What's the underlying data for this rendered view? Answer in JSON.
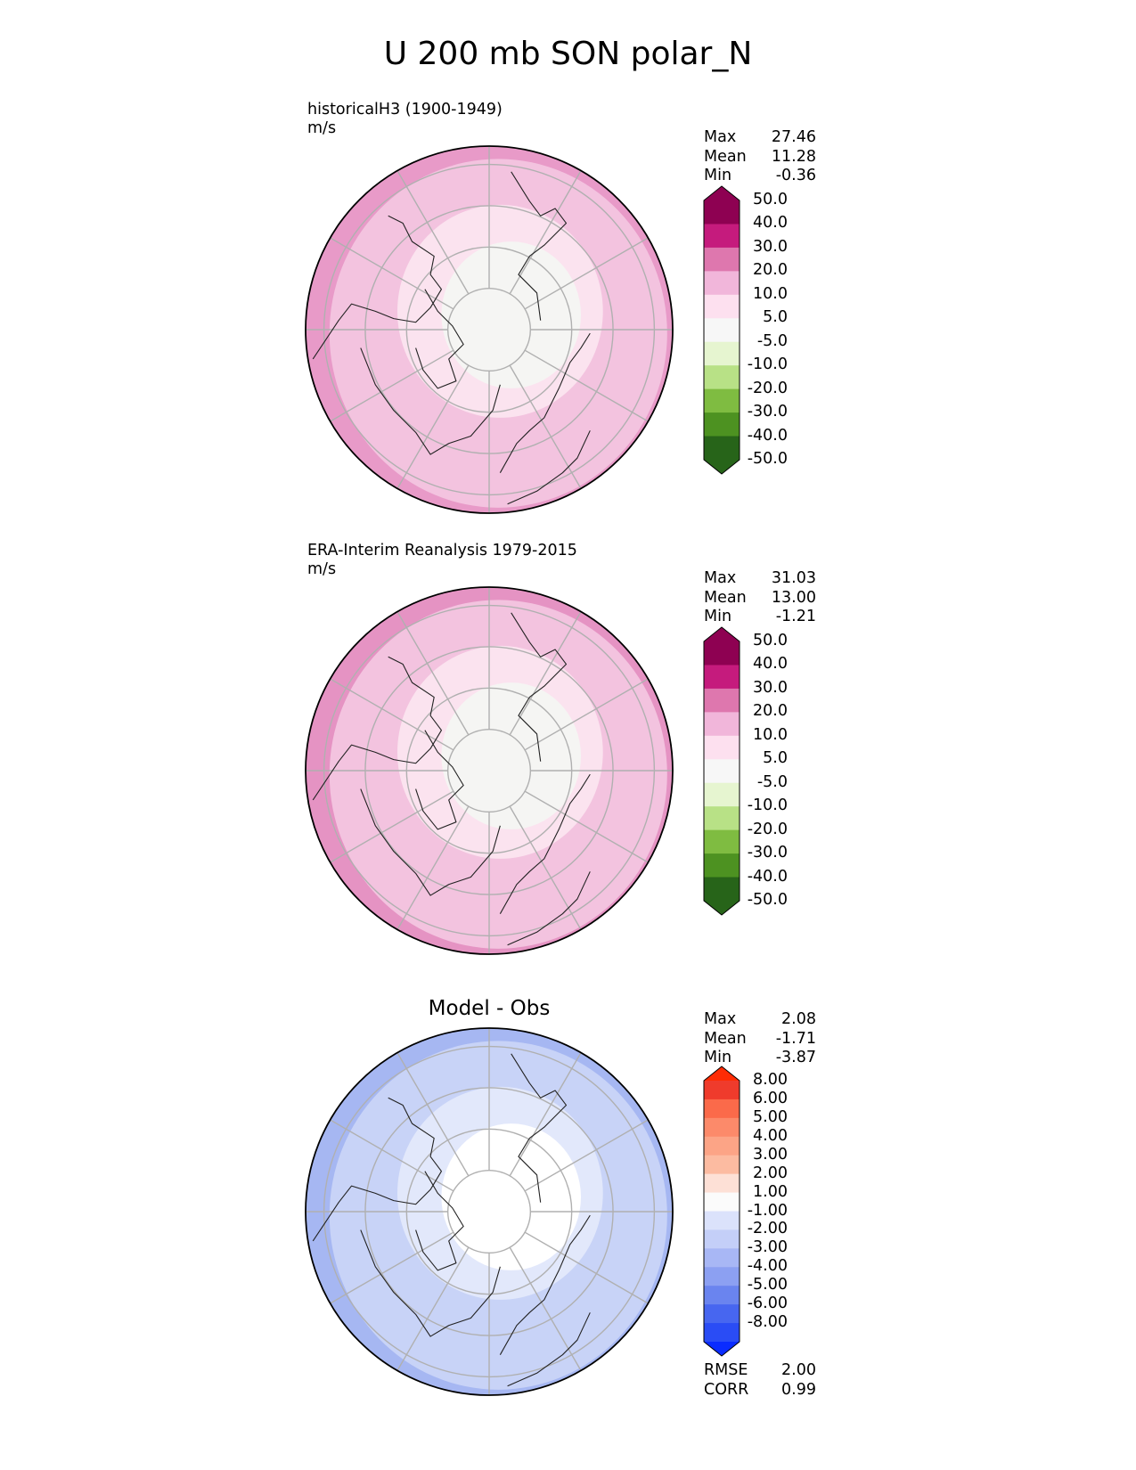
{
  "title": "U 200 mb SON polar_N",
  "panels": [
    {
      "id": "model",
      "label": "historicalH3 (1900-1949)",
      "units": "m/s",
      "title": "",
      "stats": [
        {
          "label": "Max",
          "value": "27.46"
        },
        {
          "label": "Mean",
          "value": "11.28"
        },
        {
          "label": "Min",
          "value": "-0.36"
        }
      ],
      "colorbar": {
        "ticks": [
          "50.0",
          "40.0",
          "30.0",
          "20.0",
          "10.0",
          "5.0",
          "-5.0",
          "-10.0",
          "-20.0",
          "-30.0",
          "-40.0",
          "-50.0"
        ],
        "colors": [
          "#8e0152",
          "#c51b7d",
          "#de77ae",
          "#f1b6da",
          "#fde0ef",
          "#f7f7f7",
          "#e6f5d0",
          "#b8e186",
          "#7fbc41",
          "#4d9221",
          "#276419"
        ],
        "extend_top": "#8e0152",
        "extend_bottom": "#276419"
      },
      "map_fill": {
        "outer": "#e89ac8",
        "mid": "#f3c3df",
        "inner": "#fbe3ef",
        "center": "#f5f5f3"
      }
    },
    {
      "id": "obs",
      "label": "ERA-Interim Reanalysis 1979-2015",
      "units": "m/s",
      "title": "",
      "stats": [
        {
          "label": "Max",
          "value": "31.03"
        },
        {
          "label": "Mean",
          "value": "13.00"
        },
        {
          "label": "Min",
          "value": "-1.21"
        }
      ],
      "colorbar": {
        "ticks": [
          "50.0",
          "40.0",
          "30.0",
          "20.0",
          "10.0",
          "5.0",
          "-5.0",
          "-10.0",
          "-20.0",
          "-30.0",
          "-40.0",
          "-50.0"
        ],
        "colors": [
          "#8e0152",
          "#c51b7d",
          "#de77ae",
          "#f1b6da",
          "#fde0ef",
          "#f7f7f7",
          "#e6f5d0",
          "#b8e186",
          "#7fbc41",
          "#4d9221",
          "#276419"
        ],
        "extend_top": "#8e0152",
        "extend_bottom": "#276419"
      },
      "map_fill": {
        "outer": "#e593c3",
        "mid": "#f3c3df",
        "inner": "#fbe3ef",
        "center": "#f5f5f3"
      }
    },
    {
      "id": "diff",
      "label": "",
      "units": "",
      "title": "Model - Obs",
      "stats": [
        {
          "label": "Max",
          "value": "2.08"
        },
        {
          "label": "Mean",
          "value": "-1.71"
        },
        {
          "label": "Min",
          "value": "-3.87"
        }
      ],
      "extra_stats": [
        {
          "label": "RMSE",
          "value": "2.00"
        },
        {
          "label": "CORR",
          "value": "0.99"
        }
      ],
      "colorbar": {
        "ticks": [
          "8.00",
          "6.00",
          "5.00",
          "4.00",
          "3.00",
          "2.00",
          "1.00",
          "-1.00",
          "-2.00",
          "-3.00",
          "-4.00",
          "-5.00",
          "-6.00",
          "-8.00"
        ],
        "colors": [
          "#ef3b2c",
          "#fb6a4a",
          "#fc8a6a",
          "#fca486",
          "#fcbba1",
          "#fde0d6",
          "#fbfbfb",
          "#dbe2fb",
          "#c4cff8",
          "#a8b7f5",
          "#8ca0f2",
          "#6a84ef",
          "#4766f0",
          "#2a4cf5"
        ],
        "extend_top": "#fe2c05",
        "extend_bottom": "#0a2cff"
      },
      "map_fill": {
        "outer": "#a6b7f2",
        "mid": "#c8d3f7",
        "inner": "#e2e8fb",
        "center": "#ffffff"
      }
    }
  ],
  "chart_data": [
    {
      "type": "heatmap",
      "projection": "north polar stereographic",
      "variable": "U 200 mb SON polar_N",
      "subtitle": "historicalH3 (1900-1949)",
      "units": "m/s",
      "stats": {
        "max": 27.46,
        "mean": 11.28,
        "min": -0.36
      },
      "levels": [
        -50,
        -40,
        -30,
        -20,
        -10,
        -5,
        5,
        10,
        20,
        30,
        40,
        50
      ]
    },
    {
      "type": "heatmap",
      "projection": "north polar stereographic",
      "variable": "U 200 mb SON polar_N",
      "subtitle": "ERA-Interim Reanalysis 1979-2015",
      "units": "m/s",
      "stats": {
        "max": 31.03,
        "mean": 13.0,
        "min": -1.21
      },
      "levels": [
        -50,
        -40,
        -30,
        -20,
        -10,
        -5,
        5,
        10,
        20,
        30,
        40,
        50
      ]
    },
    {
      "type": "heatmap",
      "projection": "north polar stereographic",
      "variable": "U 200 mb SON polar_N",
      "title": "Model - Obs",
      "stats": {
        "max": 2.08,
        "mean": -1.71,
        "min": -3.87,
        "rmse": 2.0,
        "corr": 0.99
      },
      "levels": [
        -8,
        -6,
        -5,
        -4,
        -3,
        -2,
        -1,
        1,
        2,
        3,
        4,
        5,
        6,
        8
      ]
    }
  ]
}
